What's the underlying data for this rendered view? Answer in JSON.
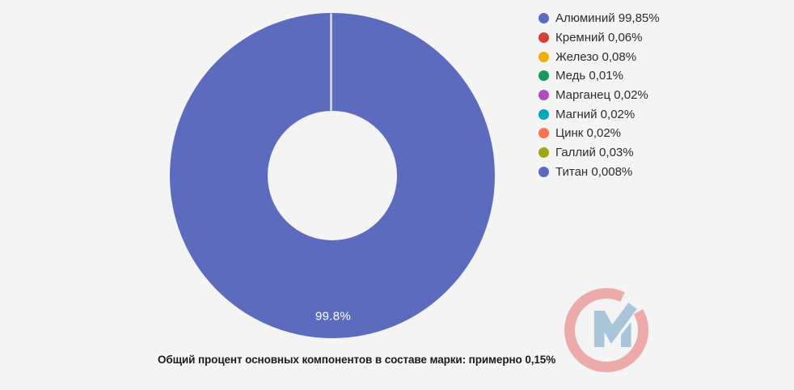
{
  "background": "#f4f4f5",
  "chart_data": {
    "type": "pie",
    "donut": true,
    "legend_position": "right",
    "slices": [
      {
        "name": "Алюминий",
        "value": 99.85,
        "label": "Алюминий 99,85%",
        "color": "#5d6bbe"
      },
      {
        "name": "Кремний",
        "value": 0.06,
        "label": "Кремний 0,06%",
        "color": "#d2413b"
      },
      {
        "name": "Железо",
        "value": 0.08,
        "label": "Железо 0,08%",
        "color": "#efad0b"
      },
      {
        "name": "Медь",
        "value": 0.01,
        "label": "Медь 0,01%",
        "color": "#169b5b"
      },
      {
        "name": "Марганец",
        "value": 0.02,
        "label": "Марганец 0,02%",
        "color": "#b14cbe"
      },
      {
        "name": "Магний",
        "value": 0.02,
        "label": "Магний 0,02%",
        "color": "#00a7b6"
      },
      {
        "name": "Цинк",
        "value": 0.02,
        "label": "Цинк 0,02%",
        "color": "#fb7250"
      },
      {
        "name": "Галлий",
        "value": 0.03,
        "label": "Галлий 0,03%",
        "color": "#a3a41b"
      },
      {
        "name": "Титан",
        "value": 0.008,
        "label": "Титан 0,008%",
        "color": "#5d6bbe"
      }
    ],
    "data_label": "99.8%",
    "caption": "Общий процент основных компонентов в составе марки: примерно 0,15%"
  },
  "logo": {
    "c_color": "#ecaaa9",
    "m_color": "#a9c5d9"
  }
}
